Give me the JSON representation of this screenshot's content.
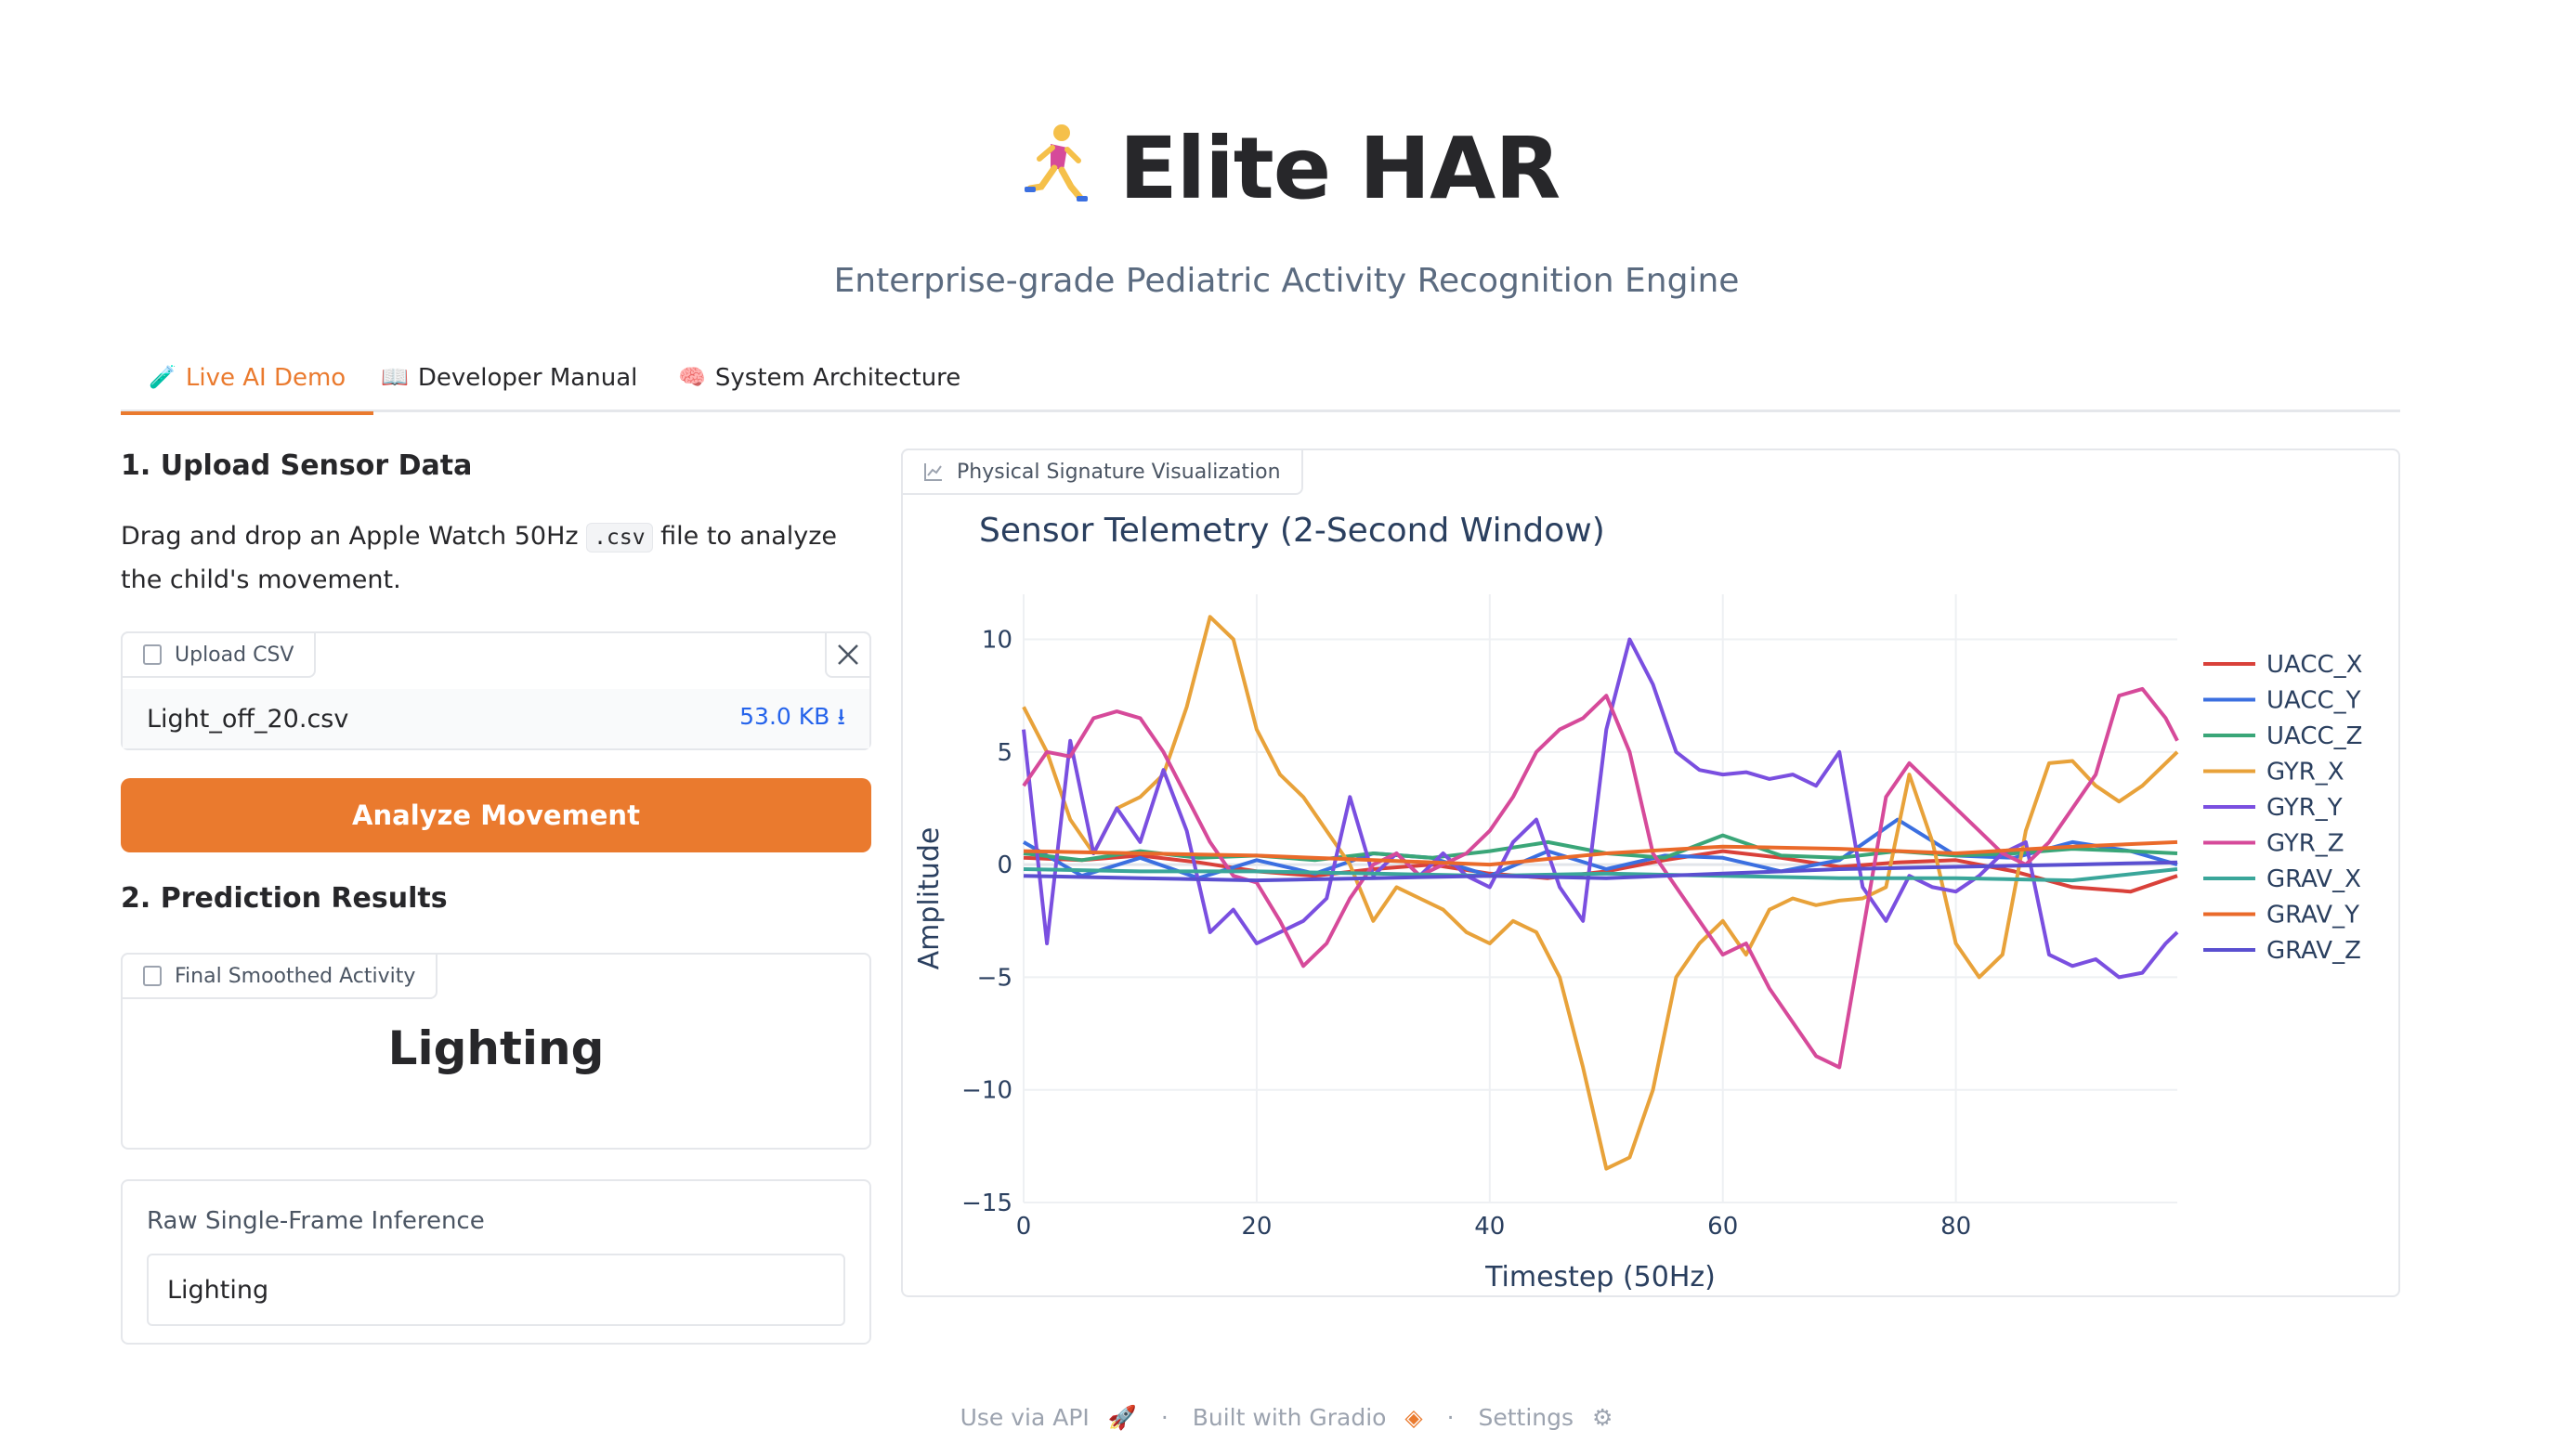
{
  "header": {
    "title": "Elite HAR",
    "subtitle": "Enterprise-grade Pediatric Activity Recognition Engine",
    "icon": "runner-emoji"
  },
  "tabs": [
    {
      "label": "Live AI Demo",
      "icon": "test-tube-icon",
      "active": true
    },
    {
      "label": "Developer Manual",
      "icon": "book-icon",
      "active": false
    },
    {
      "label": "System Architecture",
      "icon": "brain-icon",
      "active": false
    }
  ],
  "upload_section": {
    "heading": "1. Upload Sensor Data",
    "desc_before": "Drag and drop an Apple Watch 50Hz ",
    "desc_code": ".csv",
    "desc_after": " file to analyze the child's movement.",
    "upload_label": "Upload CSV",
    "file_name": "Light_off_20.csv",
    "file_size": "53.0 KB ⭳",
    "analyze_label": "Analyze Movement"
  },
  "results_section": {
    "heading": "2. Prediction Results",
    "final_label": "Final Smoothed Activity",
    "final_value": "Lighting",
    "raw_label": "Raw Single-Frame Inference",
    "raw_value": "Lighting"
  },
  "viz_label": "Physical Signature Visualization",
  "footer": {
    "api": "Use via API",
    "sep": "·",
    "built": "Built with Gradio",
    "settings": "Settings"
  },
  "colors": {
    "accent": "#ea7a2e",
    "link": "#2563eb"
  },
  "chart_data": {
    "type": "line",
    "title": "Sensor Telemetry (2-Second Window)",
    "xlabel": "Timestep (50Hz)",
    "ylabel": "Amplitude",
    "xlim": [
      0,
      99
    ],
    "ylim": [
      -15,
      12
    ],
    "xticks": [
      0,
      20,
      40,
      60,
      80
    ],
    "yticks": [
      -15,
      -10,
      -5,
      0,
      5,
      10
    ],
    "grid": true,
    "legend_position": "right",
    "series": [
      {
        "name": "UACC_X",
        "color": "#d9413a",
        "x": [
          0,
          5,
          10,
          15,
          20,
          25,
          30,
          35,
          40,
          45,
          50,
          55,
          60,
          65,
          70,
          75,
          80,
          85,
          90,
          95,
          99
        ],
        "y": [
          0.3,
          0.2,
          0.4,
          0.1,
          -0.3,
          -0.5,
          -0.2,
          0.0,
          -0.4,
          -0.6,
          -0.3,
          0.2,
          0.6,
          0.3,
          -0.1,
          0.1,
          0.2,
          -0.3,
          -1.0,
          -1.2,
          -0.5
        ]
      },
      {
        "name": "UACC_Y",
        "color": "#3b6fe0",
        "x": [
          0,
          5,
          10,
          15,
          20,
          25,
          30,
          35,
          40,
          45,
          50,
          55,
          60,
          65,
          70,
          75,
          80,
          85,
          90,
          95,
          99
        ],
        "y": [
          1.0,
          -0.5,
          0.3,
          -0.6,
          0.2,
          -0.4,
          0.5,
          0.3,
          -0.5,
          0.6,
          -0.2,
          0.4,
          0.3,
          -0.3,
          0.2,
          2.0,
          0.4,
          0.3,
          1.0,
          0.6,
          0.0
        ]
      },
      {
        "name": "UACC_Z",
        "color": "#3aa678",
        "x": [
          0,
          5,
          10,
          15,
          20,
          25,
          30,
          35,
          40,
          45,
          50,
          55,
          60,
          65,
          70,
          75,
          80,
          85,
          90,
          95,
          99
        ],
        "y": [
          0.5,
          0.2,
          0.6,
          0.3,
          0.4,
          0.2,
          0.5,
          0.3,
          0.6,
          1.0,
          0.5,
          0.3,
          1.3,
          0.4,
          0.3,
          0.6,
          0.4,
          0.5,
          0.7,
          0.6,
          0.5
        ]
      },
      {
        "name": "GYR_X",
        "color": "#e8a23a",
        "x": [
          0,
          2,
          4,
          6,
          8,
          10,
          12,
          14,
          16,
          18,
          20,
          22,
          24,
          26,
          28,
          30,
          32,
          34,
          36,
          38,
          40,
          42,
          44,
          46,
          48,
          50,
          52,
          54,
          56,
          58,
          60,
          62,
          64,
          66,
          68,
          70,
          72,
          74,
          76,
          78,
          80,
          82,
          84,
          86,
          88,
          90,
          92,
          94,
          96,
          98,
          99
        ],
        "y": [
          7.0,
          5.0,
          2.0,
          0.5,
          2.5,
          3.0,
          4.0,
          7.0,
          11.0,
          10.0,
          6.0,
          4.0,
          3.0,
          1.5,
          0.0,
          -2.5,
          -1.0,
          -1.5,
          -2.0,
          -3.0,
          -3.5,
          -2.5,
          -3.0,
          -5.0,
          -9.0,
          -13.5,
          -13.0,
          -10.0,
          -5.0,
          -3.5,
          -2.5,
          -4.0,
          -2.0,
          -1.5,
          -1.8,
          -1.6,
          -1.5,
          -1.0,
          4.0,
          1.0,
          -3.5,
          -5.0,
          -4.0,
          1.5,
          4.5,
          4.6,
          3.5,
          2.8,
          3.5,
          4.5,
          5.0
        ]
      },
      {
        "name": "GYR_Y",
        "color": "#7a4fe0",
        "x": [
          0,
          2,
          4,
          6,
          8,
          10,
          12,
          14,
          16,
          18,
          20,
          22,
          24,
          26,
          28,
          30,
          32,
          34,
          36,
          38,
          40,
          42,
          44,
          46,
          48,
          50,
          52,
          54,
          56,
          58,
          60,
          62,
          64,
          66,
          68,
          70,
          72,
          74,
          76,
          78,
          80,
          82,
          84,
          86,
          88,
          90,
          92,
          94,
          96,
          98,
          99
        ],
        "y": [
          6.0,
          -3.5,
          5.5,
          0.5,
          2.5,
          1.0,
          4.2,
          1.5,
          -3.0,
          -2.0,
          -3.5,
          -3.0,
          -2.5,
          -1.5,
          3.0,
          -0.5,
          0.5,
          -0.5,
          0.5,
          -0.5,
          -1.0,
          1.0,
          2.0,
          -1.0,
          -2.5,
          6.0,
          10.0,
          8.0,
          5.0,
          4.2,
          4.0,
          4.1,
          3.8,
          4.0,
          3.5,
          5.0,
          -1.0,
          -2.5,
          -0.5,
          -1.0,
          -1.2,
          -0.5,
          0.5,
          1.0,
          -4.0,
          -4.5,
          -4.2,
          -5.0,
          -4.8,
          -3.5,
          -3.0
        ]
      },
      {
        "name": "GYR_Z",
        "color": "#d64a9a",
        "x": [
          0,
          2,
          4,
          6,
          8,
          10,
          12,
          14,
          16,
          18,
          20,
          22,
          24,
          26,
          28,
          30,
          32,
          34,
          36,
          38,
          40,
          42,
          44,
          46,
          48,
          50,
          52,
          54,
          56,
          58,
          60,
          62,
          64,
          66,
          68,
          70,
          72,
          74,
          76,
          78,
          80,
          82,
          84,
          86,
          88,
          90,
          92,
          94,
          96,
          98,
          99
        ],
        "y": [
          3.5,
          5.0,
          4.8,
          6.5,
          6.8,
          6.5,
          5.0,
          3.0,
          1.0,
          -0.5,
          -0.8,
          -2.5,
          -4.5,
          -3.5,
          -1.5,
          0.0,
          0.5,
          -0.5,
          0.0,
          0.5,
          1.5,
          3.0,
          5.0,
          6.0,
          6.5,
          7.5,
          5.0,
          0.5,
          -1.0,
          -2.5,
          -4.0,
          -3.5,
          -5.5,
          -7.0,
          -8.5,
          -9.0,
          -3.0,
          3.0,
          4.5,
          3.5,
          2.5,
          1.5,
          0.5,
          0.0,
          1.0,
          2.5,
          4.0,
          7.5,
          7.8,
          6.5,
          5.5
        ]
      },
      {
        "name": "GRAV_X",
        "color": "#3aa69a",
        "x": [
          0,
          10,
          20,
          30,
          40,
          50,
          60,
          70,
          80,
          90,
          99
        ],
        "y": [
          -0.2,
          -0.3,
          -0.3,
          -0.4,
          -0.5,
          -0.4,
          -0.5,
          -0.6,
          -0.6,
          -0.7,
          -0.2
        ]
      },
      {
        "name": "GRAV_Y",
        "color": "#ea6a2a",
        "x": [
          0,
          10,
          20,
          30,
          40,
          50,
          60,
          70,
          80,
          90,
          99
        ],
        "y": [
          0.6,
          0.5,
          0.4,
          0.2,
          0.0,
          0.5,
          0.8,
          0.7,
          0.5,
          0.8,
          1.0
        ]
      },
      {
        "name": "GRAV_Z",
        "color": "#5a4fd0",
        "x": [
          0,
          10,
          20,
          30,
          40,
          50,
          60,
          70,
          80,
          90,
          99
        ],
        "y": [
          -0.5,
          -0.6,
          -0.7,
          -0.6,
          -0.5,
          -0.6,
          -0.4,
          -0.2,
          -0.1,
          0.0,
          0.1
        ]
      }
    ]
  }
}
